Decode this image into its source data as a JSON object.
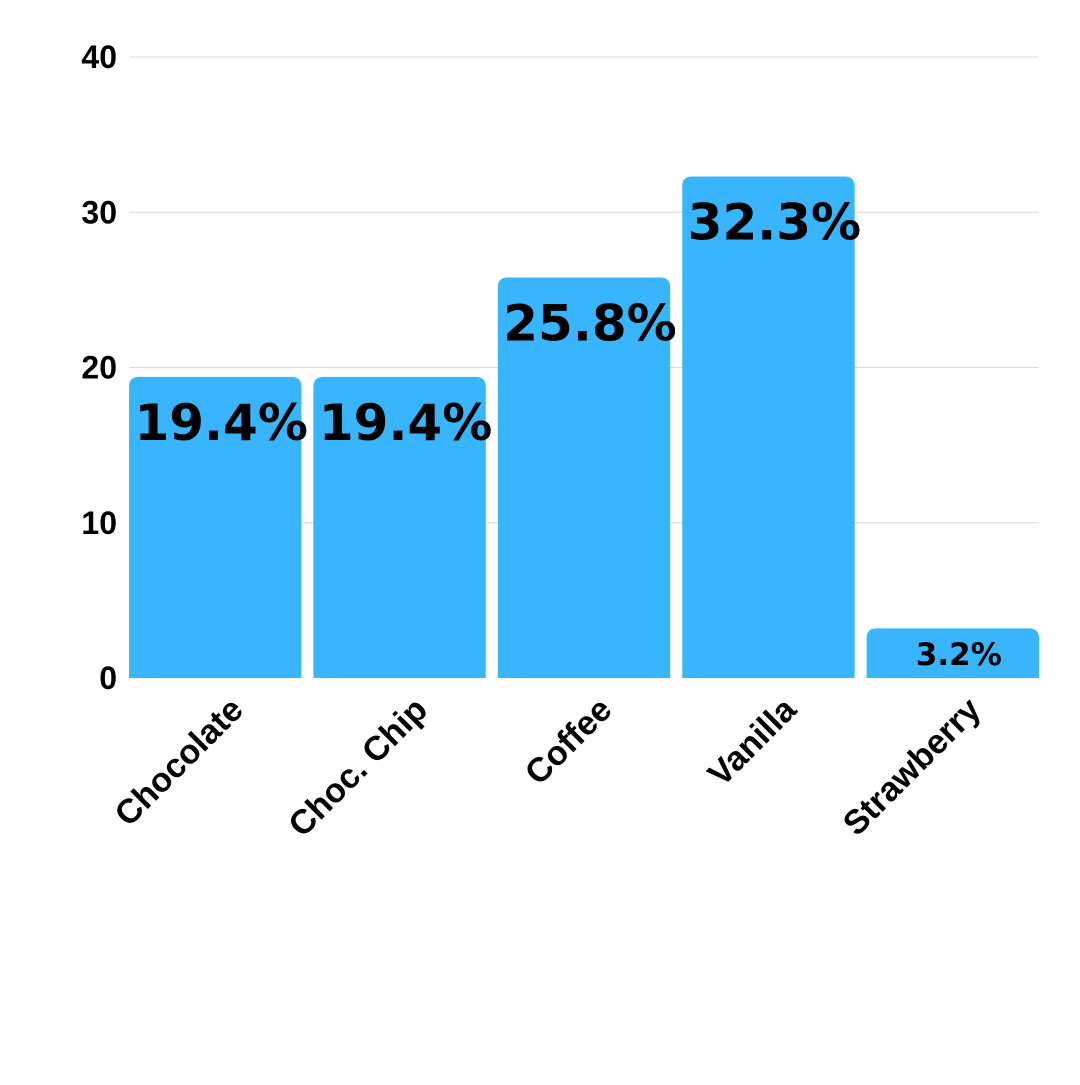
{
  "chart_data": {
    "type": "bar",
    "categories": [
      "Chocolate",
      "Choc. Chip",
      "Coffee",
      "Vanilla",
      "Strawberry"
    ],
    "values": [
      19.4,
      19.4,
      25.8,
      32.3,
      3.2
    ],
    "data_labels": [
      "19.4%",
      "19.4%",
      "25.8%",
      "32.3%",
      "3.2%"
    ],
    "ylim": [
      0,
      40
    ],
    "yticks": [
      0,
      10,
      20,
      30,
      40
    ],
    "grid": true,
    "bar_color": "#39B5FD",
    "grid_color": "#D9D9D9"
  }
}
